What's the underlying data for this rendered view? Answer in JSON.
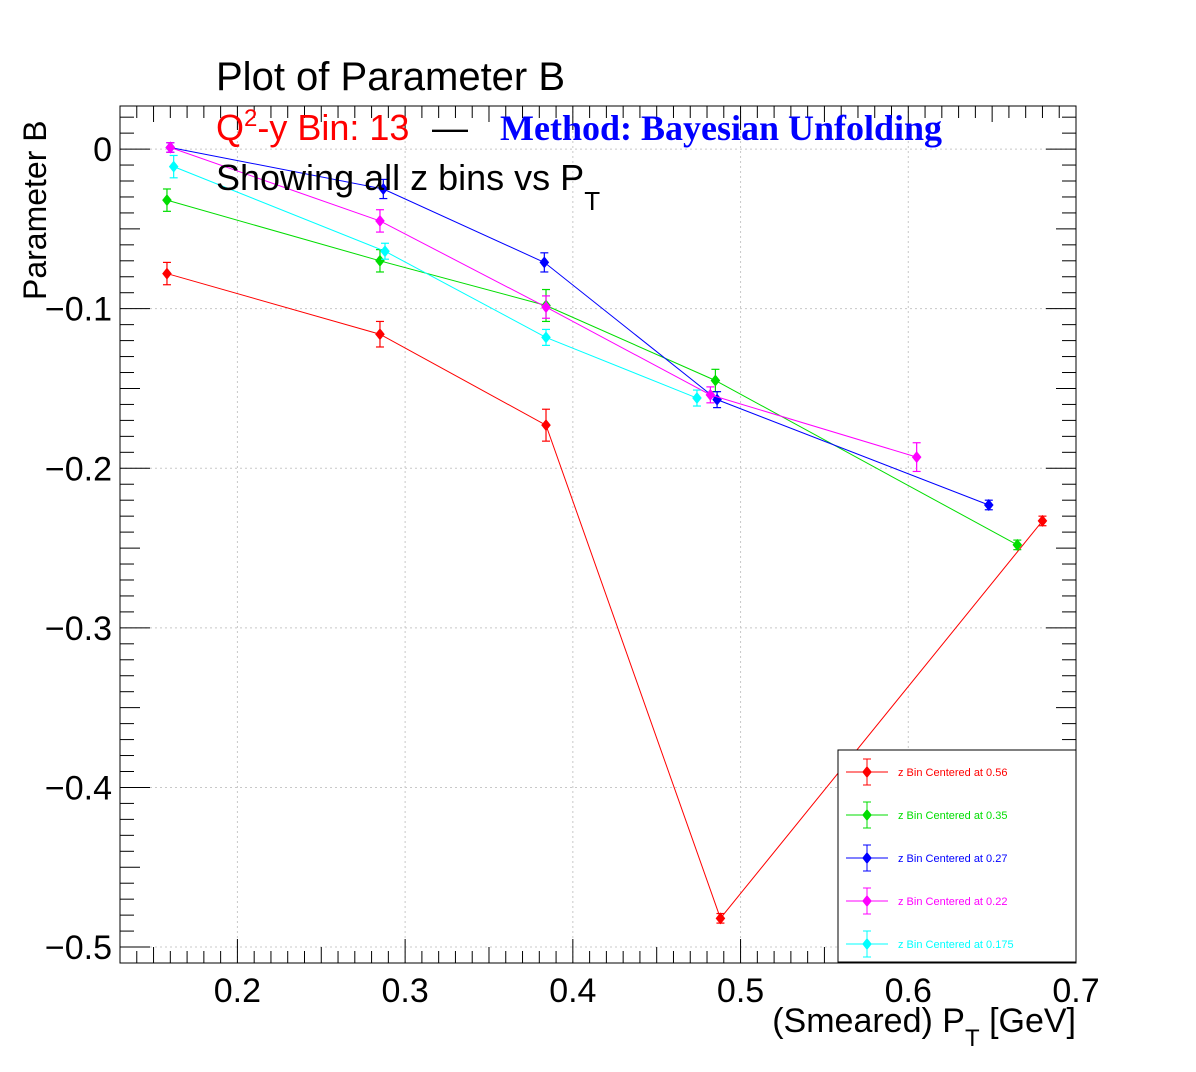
{
  "colors": {
    "red": "#ff0000",
    "green": "#00dd00",
    "blue": "#0000ff",
    "magenta": "#ff00ff",
    "cyan": "#00ffff",
    "text": "#000000",
    "grid": "#c8c8c8"
  },
  "title": {
    "main": "Plot of Parameter B",
    "q2_prefix": "Q",
    "q2_sup": "2",
    "q2_rest": "-y Bin: 13",
    "dash": "—",
    "method": "Method: Bayesian Unfolding",
    "showing_prefix": "Showing all z bins vs P",
    "showing_sub": "T"
  },
  "chart_data": {
    "type": "scatter",
    "xlabel_prefix": "(Smeared) P",
    "xlabel_sub": "T",
    "xlabel_suffix": " [GeV]",
    "ylabel": "Parameter B",
    "xlim": [
      0.13,
      0.7
    ],
    "ylim": [
      -0.51,
      0.027
    ],
    "x_ticks": [
      0.2,
      0.3,
      0.4,
      0.5,
      0.6,
      0.7
    ],
    "x_tick_labels": [
      "0.2",
      "0.3",
      "0.4",
      "0.5",
      "0.6",
      "0.7"
    ],
    "y_ticks": [
      0,
      -0.1,
      -0.2,
      -0.3,
      -0.4,
      -0.5
    ],
    "y_tick_labels": [
      "0",
      "−0.1",
      "−0.2",
      "−0.3",
      "−0.4",
      "−0.5"
    ],
    "grid": true,
    "legend_position": "bottom-right",
    "series": [
      {
        "name": "z Bin Centered at 0.56",
        "color": "#ff0000",
        "x": [
          0.158,
          0.285,
          0.384,
          0.488,
          0.68
        ],
        "y": [
          -0.078,
          -0.116,
          -0.173,
          -0.482,
          -0.233
        ],
        "err": [
          0.007,
          0.008,
          0.01,
          0.003,
          0.003
        ]
      },
      {
        "name": "z Bin Centered at 0.35",
        "color": "#00dd00",
        "x": [
          0.158,
          0.285,
          0.384,
          0.485,
          0.665
        ],
        "y": [
          -0.032,
          -0.07,
          -0.098,
          -0.145,
          -0.248
        ],
        "err": [
          0.007,
          0.007,
          0.01,
          0.007,
          0.003
        ]
      },
      {
        "name": "z Bin Centered at 0.27",
        "color": "#0000ff",
        "x": [
          0.16,
          0.287,
          0.383,
          0.486,
          0.648
        ],
        "y": [
          0.001,
          -0.025,
          -0.071,
          -0.157,
          -0.223
        ],
        "err": [
          0.003,
          0.006,
          0.006,
          0.005,
          0.003
        ]
      },
      {
        "name": "z Bin Centered at 0.22",
        "color": "#ff00ff",
        "x": [
          0.16,
          0.285,
          0.384,
          0.482,
          0.605
        ],
        "y": [
          0.001,
          -0.045,
          -0.099,
          -0.154,
          -0.193
        ],
        "err": [
          0.003,
          0.007,
          0.007,
          0.005,
          0.009
        ]
      },
      {
        "name": "z Bin Centered at 0.175",
        "color": "#00ffff",
        "x": [
          0.162,
          0.288,
          0.384,
          0.474
        ],
        "y": [
          -0.011,
          -0.064,
          -0.118,
          -0.156
        ],
        "err": [
          0.007,
          0.005,
          0.005,
          0.005
        ]
      }
    ]
  }
}
